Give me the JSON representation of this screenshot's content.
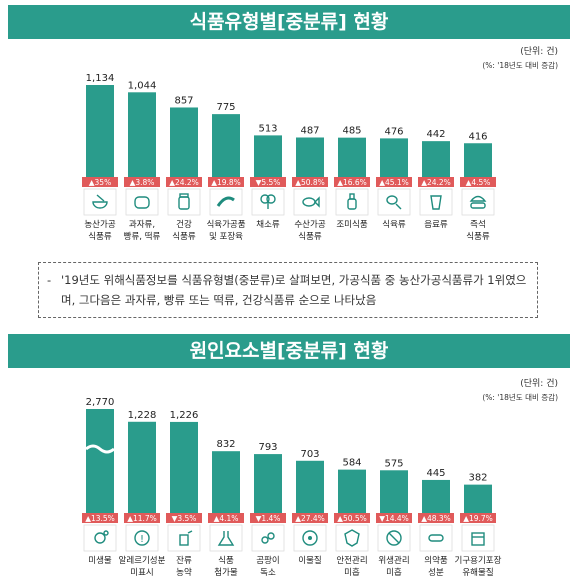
{
  "charts": [
    {
      "title": "식품유형별[중분류] 현황",
      "unit": "(단위: 건)",
      "unit_note": "(%: '18년도 대비 증감)",
      "bar_color": "#2a9c8c",
      "pct_color": "#e05a5a",
      "icon_color": "#1f8c7e",
      "chart_data": {
        "type": "bar",
        "categories": [
          [
            "농산가공",
            "식품류"
          ],
          [
            "과자류,",
            "빵류, 떡류"
          ],
          [
            "건강",
            "식품류"
          ],
          [
            "식육가공품",
            "및 포장육"
          ],
          [
            "채소류"
          ],
          [
            "수산가공",
            "식품류"
          ],
          [
            "조미식품"
          ],
          [
            "식육류"
          ],
          [
            "음료류"
          ],
          [
            "즉석",
            "식품류"
          ]
        ],
        "values": [
          1134,
          1044,
          857,
          775,
          513,
          487,
          485,
          476,
          442,
          416
        ],
        "value_labels": [
          "1,134",
          "1,044",
          "857",
          "775",
          "513",
          "487",
          "485",
          "476",
          "442",
          "416"
        ],
        "changes": [
          "▲35%",
          "▲3.8%",
          "▲24.2%",
          "▲19.8%",
          "▼5.5%",
          "▲50.8%",
          "▲16.6%",
          "▲45.1%",
          "▲24.2%",
          "▲4.5%"
        ],
        "icons": [
          "bowl-icon",
          "bread-icon",
          "supplement-jar-icon",
          "sausage-icon",
          "broccoli-icon",
          "fish-icon",
          "sauce-bottle-icon",
          "drumstick-icon",
          "cup-icon",
          "burger-icon"
        ],
        "ylim": [
          0,
          1134
        ]
      }
    },
    {
      "title": "원인요소별[중분류] 현황",
      "unit": "(단위: 건)",
      "unit_note": "(%: '18년도 대비 증감)",
      "bar_color": "#2a9c8c",
      "pct_color": "#e05a5a",
      "icon_color": "#1f8c7e",
      "chart_data": {
        "type": "bar",
        "categories": [
          [
            "미생물"
          ],
          [
            "알레르기성분",
            "미표시"
          ],
          [
            "잔류",
            "농약"
          ],
          [
            "식품",
            "첨가물"
          ],
          [
            "곰팡이",
            "독소"
          ],
          [
            "이물질"
          ],
          [
            "안전관리",
            "미흡"
          ],
          [
            "위생관리",
            "미흡"
          ],
          [
            "의약품",
            "성분"
          ],
          [
            "기구용기포장",
            "유해물질"
          ]
        ],
        "values": [
          2770,
          1228,
          1226,
          832,
          793,
          703,
          584,
          575,
          445,
          382
        ],
        "value_labels": [
          "2,770",
          "1,228",
          "1,226",
          "832",
          "793",
          "703",
          "584",
          "575",
          "445",
          "382"
        ],
        "changes": [
          "▲13.5%",
          "▲11.7%",
          "▼3.5%",
          "▲4.1%",
          "▼1.4%",
          "▲27.4%",
          "▲50.5%",
          "▼14.4%",
          "▲48.3%",
          "▲19.7%"
        ],
        "icons": [
          "microbe-icon",
          "allergen-icon",
          "pesticide-icon",
          "additive-flask-icon",
          "mold-icon",
          "foreign-matter-icon",
          "safety-icon",
          "hygiene-icon",
          "medicine-icon",
          "packaging-icon"
        ],
        "axis_break": true,
        "ylim": [
          0,
          1400
        ]
      }
    }
  ],
  "note": {
    "dash": "-",
    "text": "'19년도 위해식품정보를 식품유형별(중분류)로 살펴보면, 가공식품 중 농산가공식품류가 1위였으며, 그다음은 과자류, 빵류 또는 떡류, 건강식품류 순으로 나타났음"
  }
}
